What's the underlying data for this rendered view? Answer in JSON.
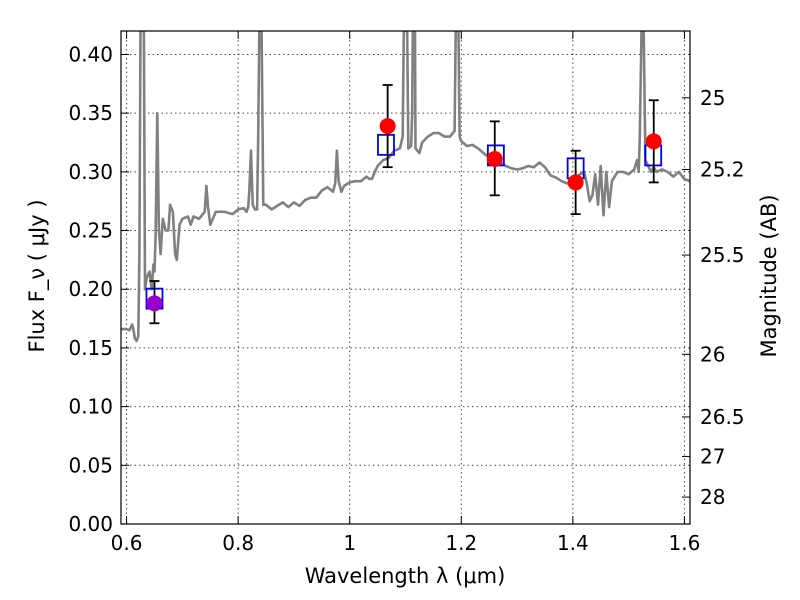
{
  "chart_data": {
    "type": "scatter",
    "xlabel": "Wavelength  λ (μm)",
    "ylabel": "Flux  F_ν  ( μJy )",
    "ylabel2": "Magnitude (AB)",
    "xlim": [
      0.59,
      1.61
    ],
    "ylim": [
      0.0,
      0.42
    ],
    "grid": true,
    "x_ticks": [
      {
        "value": 0.6,
        "label": "0.6"
      },
      {
        "value": 0.8,
        "label": "0.8"
      },
      {
        "value": 1.0,
        "label": "1"
      },
      {
        "value": 1.2,
        "label": "1.2"
      },
      {
        "value": 1.4,
        "label": "1.4"
      },
      {
        "value": 1.6,
        "label": "1.6"
      }
    ],
    "y_ticks": [
      {
        "value": 0.0,
        "label": "0.00"
      },
      {
        "value": 0.05,
        "label": "0.05"
      },
      {
        "value": 0.1,
        "label": "0.10"
      },
      {
        "value": 0.15,
        "label": "0.15"
      },
      {
        "value": 0.2,
        "label": "0.20"
      },
      {
        "value": 0.25,
        "label": "0.25"
      },
      {
        "value": 0.3,
        "label": "0.30"
      },
      {
        "value": 0.35,
        "label": "0.35"
      },
      {
        "value": 0.4,
        "label": "0.40"
      }
    ],
    "mag_ticks": [
      {
        "mag": 25,
        "label": "25"
      },
      {
        "mag": 25.2,
        "label": "25.2"
      },
      {
        "mag": 25.5,
        "label": "25.5"
      },
      {
        "mag": 26,
        "label": "26"
      },
      {
        "mag": 26.5,
        "label": "26.5"
      },
      {
        "mag": 27,
        "label": "27"
      },
      {
        "mag": 28,
        "label": "28"
      }
    ],
    "colors": {
      "sed": "#808080",
      "model_box": "#0000ff",
      "observed": "#ff0000",
      "observed_first": "#9900cc",
      "errorbar": "#000000"
    },
    "series": [
      {
        "type": "line",
        "points": [
          [
            0.59,
            0.166
          ],
          [
            0.6,
            0.166
          ],
          [
            0.605,
            0.165
          ],
          [
            0.61,
            0.17
          ],
          [
            0.612,
            0.166
          ],
          [
            0.615,
            0.158
          ],
          [
            0.618,
            0.156
          ],
          [
            0.621,
            0.16
          ],
          [
            0.623,
            0.23
          ],
          [
            0.625,
            0.42
          ],
          [
            0.631,
            0.42
          ],
          [
            0.633,
            0.2
          ],
          [
            0.636,
            0.21
          ],
          [
            0.641,
            0.215
          ],
          [
            0.645,
            0.2
          ],
          [
            0.648,
            0.221
          ],
          [
            0.65,
            0.215
          ],
          [
            0.652,
            0.245
          ],
          [
            0.655,
            0.35
          ],
          [
            0.658,
            0.25
          ],
          [
            0.661,
            0.23
          ],
          [
            0.665,
            0.26
          ],
          [
            0.67,
            0.25
          ],
          [
            0.675,
            0.25
          ],
          [
            0.678,
            0.272
          ],
          [
            0.683,
            0.266
          ],
          [
            0.687,
            0.23
          ],
          [
            0.69,
            0.225
          ],
          [
            0.695,
            0.255
          ],
          [
            0.7,
            0.26
          ],
          [
            0.71,
            0.262
          ],
          [
            0.715,
            0.255
          ],
          [
            0.72,
            0.262
          ],
          [
            0.73,
            0.26
          ],
          [
            0.74,
            0.266
          ],
          [
            0.743,
            0.288
          ],
          [
            0.746,
            0.27
          ],
          [
            0.75,
            0.255
          ],
          [
            0.76,
            0.266
          ],
          [
            0.775,
            0.266
          ],
          [
            0.79,
            0.264
          ],
          [
            0.8,
            0.268
          ],
          [
            0.81,
            0.269
          ],
          [
            0.815,
            0.266
          ],
          [
            0.818,
            0.27
          ],
          [
            0.82,
            0.283
          ],
          [
            0.823,
            0.318
          ],
          [
            0.826,
            0.272
          ],
          [
            0.83,
            0.268
          ],
          [
            0.834,
            0.268
          ],
          [
            0.836,
            0.33
          ],
          [
            0.838,
            0.42
          ],
          [
            0.842,
            0.42
          ],
          [
            0.845,
            0.272
          ],
          [
            0.85,
            0.272
          ],
          [
            0.86,
            0.268
          ],
          [
            0.87,
            0.271
          ],
          [
            0.88,
            0.274
          ],
          [
            0.89,
            0.27
          ],
          [
            0.9,
            0.274
          ],
          [
            0.91,
            0.271
          ],
          [
            0.92,
            0.276
          ],
          [
            0.93,
            0.278
          ],
          [
            0.94,
            0.278
          ],
          [
            0.95,
            0.284
          ],
          [
            0.96,
            0.287
          ],
          [
            0.97,
            0.283
          ],
          [
            0.974,
            0.29
          ],
          [
            0.977,
            0.318
          ],
          [
            0.98,
            0.292
          ],
          [
            0.985,
            0.283
          ],
          [
            0.99,
            0.288
          ],
          [
            1.0,
            0.291
          ],
          [
            1.01,
            0.292
          ],
          [
            1.02,
            0.292
          ],
          [
            1.03,
            0.296
          ],
          [
            1.035,
            0.294
          ],
          [
            1.04,
            0.294
          ],
          [
            1.045,
            0.3
          ],
          [
            1.05,
            0.305
          ],
          [
            1.06,
            0.31
          ],
          [
            1.07,
            0.312
          ],
          [
            1.08,
            0.318
          ],
          [
            1.09,
            0.32
          ],
          [
            1.095,
            0.33
          ],
          [
            1.097,
            0.42
          ],
          [
            1.103,
            0.42
          ],
          [
            1.105,
            0.32
          ],
          [
            1.11,
            0.322
          ],
          [
            1.112,
            0.35
          ],
          [
            1.113,
            0.42
          ],
          [
            1.117,
            0.42
          ],
          [
            1.118,
            0.32
          ],
          [
            1.125,
            0.316
          ],
          [
            1.13,
            0.325
          ],
          [
            1.14,
            0.33
          ],
          [
            1.15,
            0.333
          ],
          [
            1.16,
            0.333
          ],
          [
            1.17,
            0.33
          ],
          [
            1.18,
            0.33
          ],
          [
            1.188,
            0.335
          ],
          [
            1.19,
            0.42
          ],
          [
            1.195,
            0.42
          ],
          [
            1.197,
            0.33
          ],
          [
            1.2,
            0.326
          ],
          [
            1.21,
            0.322
          ],
          [
            1.22,
            0.323
          ],
          [
            1.23,
            0.32
          ],
          [
            1.24,
            0.316
          ],
          [
            1.25,
            0.312
          ],
          [
            1.26,
            0.31
          ],
          [
            1.27,
            0.308
          ],
          [
            1.28,
            0.305
          ],
          [
            1.29,
            0.303
          ],
          [
            1.3,
            0.302
          ],
          [
            1.31,
            0.303
          ],
          [
            1.32,
            0.305
          ],
          [
            1.33,
            0.304
          ],
          [
            1.34,
            0.308
          ],
          [
            1.35,
            0.304
          ],
          [
            1.36,
            0.297
          ],
          [
            1.37,
            0.295
          ],
          [
            1.38,
            0.292
          ],
          [
            1.39,
            0.29
          ],
          [
            1.4,
            0.294
          ],
          [
            1.41,
            0.297
          ],
          [
            1.42,
            0.3
          ],
          [
            1.425,
            0.29
          ],
          [
            1.43,
            0.275
          ],
          [
            1.435,
            0.28
          ],
          [
            1.44,
            0.298
          ],
          [
            1.445,
            0.272
          ],
          [
            1.45,
            0.305
          ],
          [
            1.455,
            0.263
          ],
          [
            1.46,
            0.3
          ],
          [
            1.465,
            0.27
          ],
          [
            1.47,
            0.292
          ],
          [
            1.48,
            0.3
          ],
          [
            1.49,
            0.3
          ],
          [
            1.5,
            0.298
          ],
          [
            1.51,
            0.302
          ],
          [
            1.515,
            0.31
          ],
          [
            1.518,
            0.3
          ],
          [
            1.52,
            0.33
          ],
          [
            1.523,
            0.42
          ],
          [
            1.527,
            0.42
          ],
          [
            1.53,
            0.31
          ],
          [
            1.54,
            0.3
          ],
          [
            1.545,
            0.304
          ],
          [
            1.55,
            0.3
          ],
          [
            1.56,
            0.302
          ],
          [
            1.57,
            0.3
          ],
          [
            1.58,
            0.296
          ],
          [
            1.59,
            0.3
          ],
          [
            1.6,
            0.294
          ],
          [
            1.61,
            0.292
          ]
        ]
      },
      {
        "type": "model_boxes",
        "points": [
          {
            "x": 0.65,
            "y": 0.192
          },
          {
            "x": 1.065,
            "y": 0.323
          },
          {
            "x": 1.262,
            "y": 0.314
          },
          {
            "x": 1.405,
            "y": 0.303
          },
          {
            "x": 1.544,
            "y": 0.314
          }
        ]
      },
      {
        "type": "observed_with_errors",
        "points": [
          {
            "x": 0.65,
            "y": 0.188,
            "ylo": 0.171,
            "yhi": 0.207
          },
          {
            "x": 1.068,
            "y": 0.339,
            "ylo": 0.304,
            "yhi": 0.374
          },
          {
            "x": 1.26,
            "y": 0.311,
            "ylo": 0.28,
            "yhi": 0.343
          },
          {
            "x": 1.405,
            "y": 0.291,
            "ylo": 0.264,
            "yhi": 0.318
          },
          {
            "x": 1.545,
            "y": 0.326,
            "ylo": 0.291,
            "yhi": 0.361
          }
        ]
      }
    ]
  }
}
